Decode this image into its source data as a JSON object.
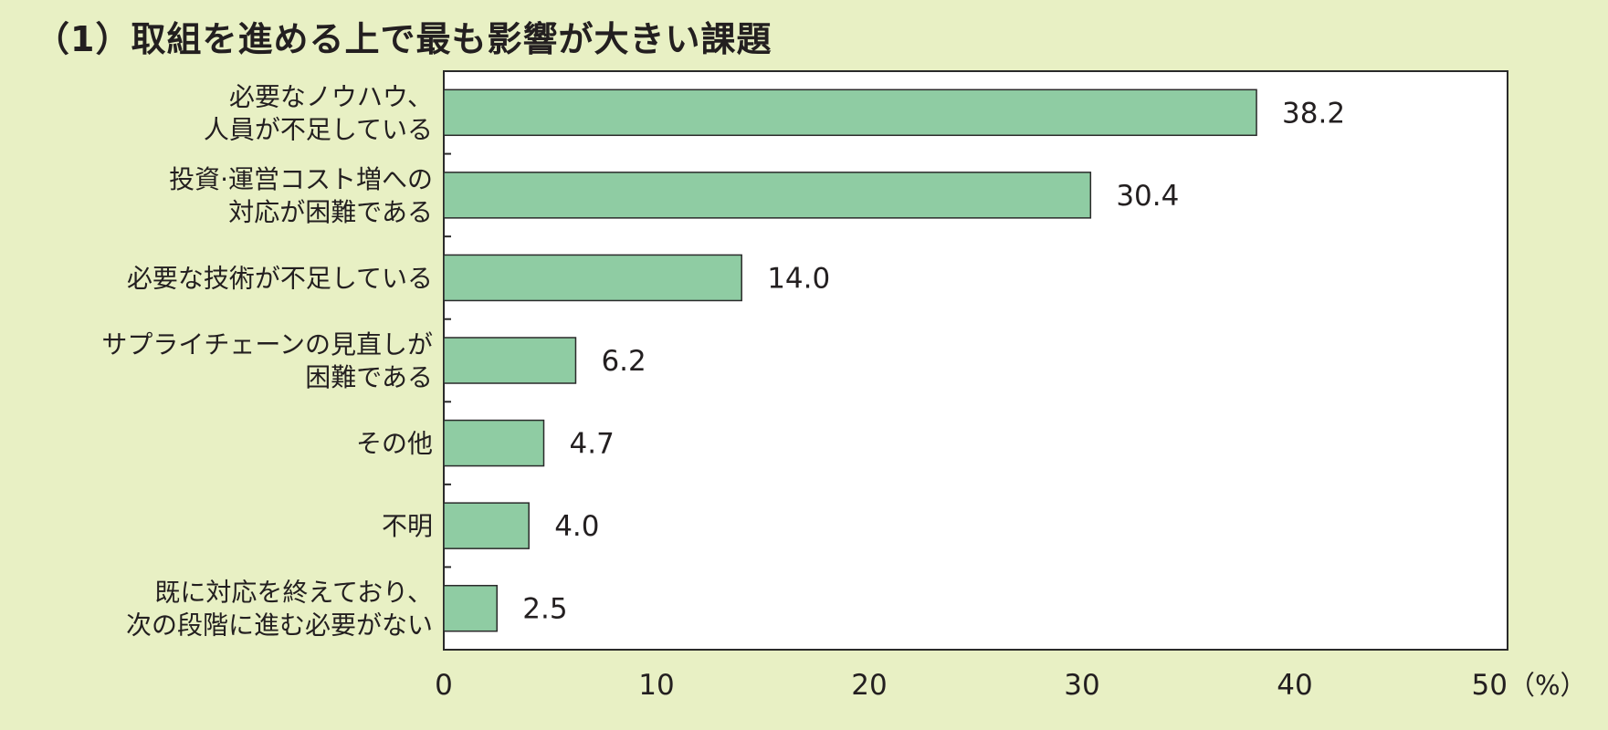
{
  "chart_data": {
    "type": "bar",
    "orientation": "horizontal",
    "title": "（1）取組を進める上で最も影響が大きい課題",
    "unit": "（%）",
    "categories": [
      [
        "必要なノウハウ、",
        "人員が不足している"
      ],
      [
        "投資·運営コスト増への",
        "対応が困難である"
      ],
      [
        "必要な技術が不足している"
      ],
      [
        "サプライチェーンの見直しが",
        "困難である"
      ],
      [
        "その他"
      ],
      [
        "不明"
      ],
      [
        "既に対応を終えており、",
        "次の段階に進む必要がない"
      ]
    ],
    "values": [
      38.2,
      30.4,
      14.0,
      6.2,
      4.7,
      4.0,
      2.5
    ],
    "value_labels": [
      "38.2",
      "30.4",
      "14.0",
      "6.2",
      "4.7",
      "4.0",
      "2.5"
    ],
    "xlim": [
      0,
      50
    ],
    "xticks": [
      0,
      10,
      20,
      30,
      40,
      50
    ],
    "grid": false,
    "legend": "none",
    "colors": {
      "bar_fill": "#8fcca3",
      "bar_stroke": "#2a2a2a",
      "plot_background": "#ffffff",
      "page_background": "#e8f0c4"
    }
  }
}
